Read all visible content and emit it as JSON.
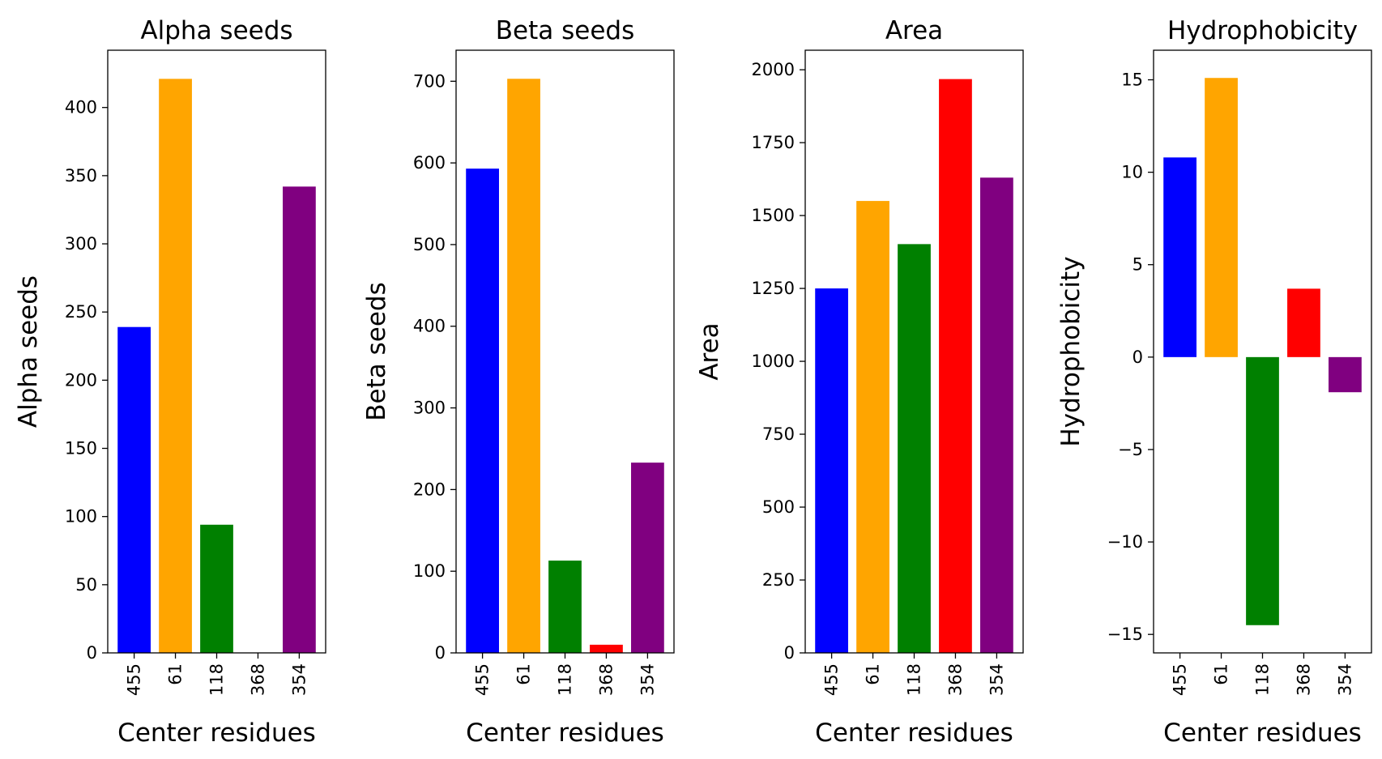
{
  "chart_data": [
    {
      "type": "bar",
      "title": "Alpha seeds",
      "xlabel": "Center residues",
      "ylabel": "Alpha seeds",
      "categories": [
        "455",
        "61",
        "118",
        "368",
        "354"
      ],
      "values": [
        239,
        421,
        94,
        0,
        342
      ],
      "colors": [
        "#0000ff",
        "#ffa500",
        "#008000",
        "#ff0000",
        "#800080"
      ],
      "ylim": [
        0,
        442
      ],
      "yticks": [
        0,
        50,
        100,
        150,
        200,
        250,
        300,
        350,
        400
      ],
      "grid": false
    },
    {
      "type": "bar",
      "title": "Beta seeds",
      "xlabel": "Center residues",
      "ylabel": "Beta seeds",
      "categories": [
        "455",
        "61",
        "118",
        "368",
        "354"
      ],
      "values": [
        593,
        703,
        113,
        10,
        233
      ],
      "colors": [
        "#0000ff",
        "#ffa500",
        "#008000",
        "#ff0000",
        "#800080"
      ],
      "ylim": [
        0,
        738
      ],
      "yticks": [
        0,
        100,
        200,
        300,
        400,
        500,
        600,
        700
      ],
      "grid": false
    },
    {
      "type": "bar",
      "title": "Area",
      "xlabel": "Center residues",
      "ylabel": "Area",
      "categories": [
        "455",
        "61",
        "118",
        "368",
        "354"
      ],
      "values": [
        1250,
        1550,
        1402,
        1968,
        1630
      ],
      "colors": [
        "#0000ff",
        "#ffa500",
        "#008000",
        "#ff0000",
        "#800080"
      ],
      "ylim": [
        0,
        2067
      ],
      "yticks": [
        0,
        250,
        500,
        750,
        1000,
        1250,
        1500,
        1750,
        2000
      ],
      "grid": false
    },
    {
      "type": "bar",
      "title": "Hydrophobicity",
      "xlabel": "Center residues",
      "ylabel": "Hydrophobicity",
      "categories": [
        "455",
        "61",
        "118",
        "368",
        "354"
      ],
      "values": [
        10.8,
        15.1,
        -14.5,
        3.7,
        -1.9
      ],
      "colors": [
        "#0000ff",
        "#ffa500",
        "#008000",
        "#ff0000",
        "#800080"
      ],
      "ylim": [
        -16.0,
        16.6
      ],
      "yticks": [
        -15,
        -10,
        -5,
        0,
        5,
        10,
        15
      ],
      "ytick_labels": [
        "−15",
        "−10",
        "−5",
        "0",
        "5",
        "10",
        "15"
      ],
      "grid": false
    }
  ]
}
